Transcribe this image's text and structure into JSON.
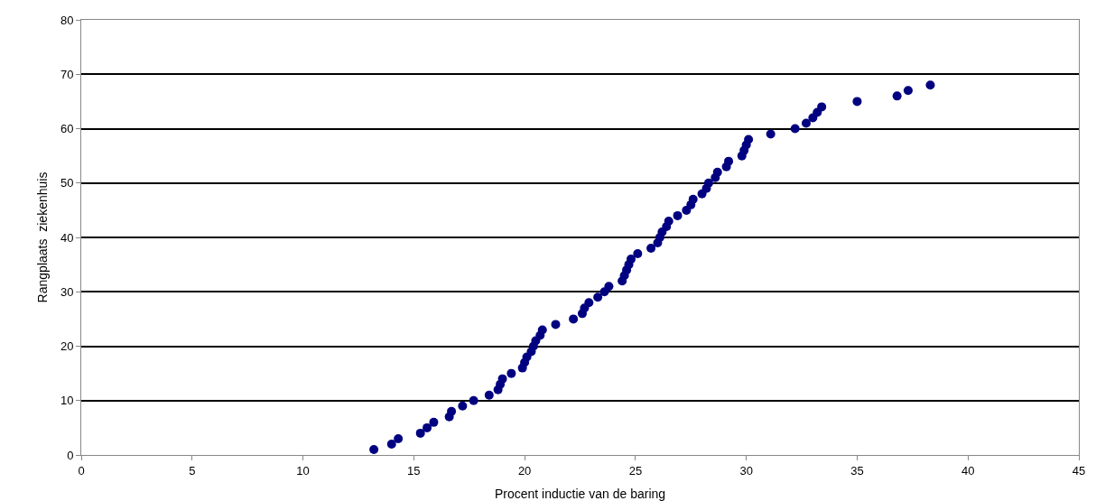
{
  "chart_data": {
    "type": "scatter",
    "xlabel": "Procent inductie van de baring",
    "ylabel": "Rangplaats  ziekenhuis",
    "x": [
      13.2,
      14.0,
      14.3,
      15.3,
      15.6,
      15.9,
      16.6,
      16.7,
      17.2,
      17.7,
      18.4,
      18.8,
      18.9,
      19.0,
      19.4,
      19.9,
      20.0,
      20.1,
      20.3,
      20.4,
      20.5,
      20.7,
      20.8,
      21.4,
      22.2,
      22.6,
      22.7,
      22.9,
      23.3,
      23.6,
      23.8,
      24.4,
      24.5,
      24.6,
      24.7,
      24.8,
      25.1,
      25.7,
      26.0,
      26.1,
      26.2,
      26.4,
      26.5,
      26.9,
      27.3,
      27.5,
      27.6,
      28.0,
      28.2,
      28.3,
      28.6,
      28.7,
      29.1,
      29.2,
      29.8,
      29.9,
      30.0,
      30.1,
      31.1,
      32.2,
      32.7,
      33.0,
      33.2,
      33.4,
      35.0,
      36.8,
      37.3,
      38.3
    ],
    "series": [
      {
        "color": "#000080",
        "values": [
          1,
          2,
          3,
          4,
          5,
          6,
          7,
          8,
          9,
          10,
          11,
          12,
          13,
          14,
          15,
          16,
          17,
          18,
          19,
          20,
          21,
          22,
          23,
          24,
          25,
          26,
          27,
          28,
          29,
          30,
          31,
          32,
          33,
          34,
          35,
          36,
          37,
          38,
          39,
          40,
          41,
          42,
          43,
          44,
          45,
          46,
          47,
          48,
          49,
          50,
          51,
          52,
          53,
          54,
          55,
          56,
          57,
          58,
          59,
          60,
          61,
          62,
          63,
          64,
          65,
          66,
          67,
          68
        ]
      }
    ],
    "xlim": [
      0,
      45
    ],
    "xticks": [
      0,
      5,
      10,
      15,
      20,
      25,
      30,
      35,
      40,
      45
    ],
    "ylim": [
      0,
      80
    ],
    "yticks": [
      0,
      10,
      20,
      30,
      40,
      50,
      60,
      70,
      80
    ],
    "grid": "y",
    "marker": "circle"
  }
}
